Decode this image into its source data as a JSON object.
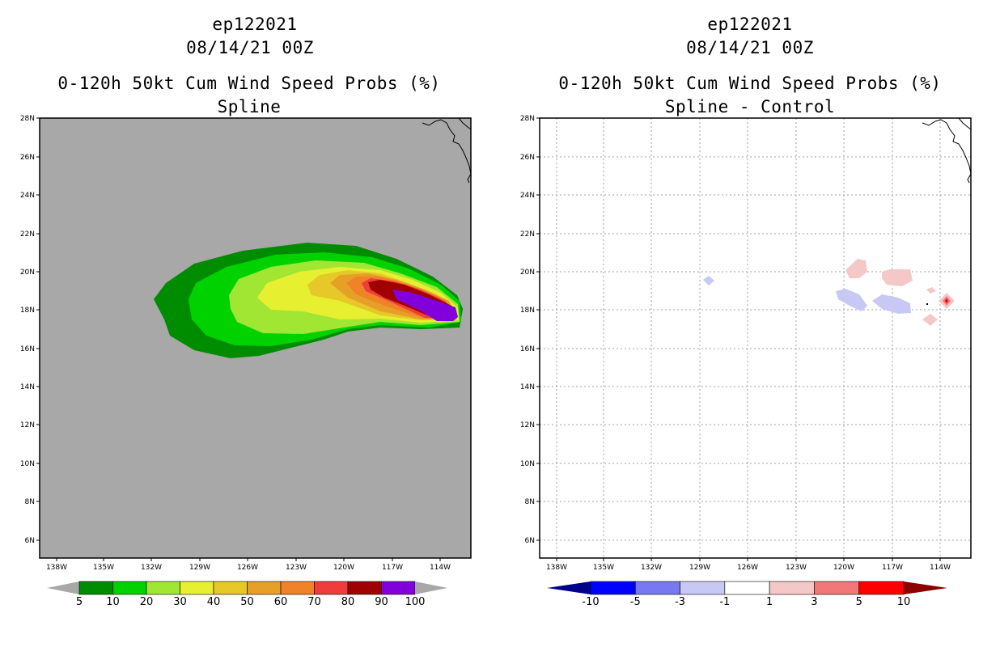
{
  "panels": [
    {
      "storm_id": "ep122021",
      "datetime": "08/14/21 00Z",
      "product": "0-120h 50kt Cum Wind Speed Probs (%)",
      "subtitle": "Spline",
      "colorbar": {
        "labels": [
          "5",
          "10",
          "20",
          "30",
          "40",
          "50",
          "60",
          "70",
          "80",
          "90",
          "100"
        ],
        "colors": [
          "#008c00",
          "#00d200",
          "#a0e632",
          "#e6f030",
          "#e6c828",
          "#e6a028",
          "#f08228",
          "#f03c3c",
          "#a00000",
          "#8200dc"
        ],
        "extend_colors": [
          "#a8a8a8",
          "#a8a8a8"
        ]
      }
    },
    {
      "storm_id": "ep122021",
      "datetime": "08/14/21 00Z",
      "product": "0-120h 50kt Cum Wind Speed Probs (%)",
      "subtitle": "Spline - Control",
      "colorbar": {
        "labels": [
          "-10",
          "-5",
          "-3",
          "-1",
          "1",
          "3",
          "5",
          "10"
        ],
        "colors": [
          "#0000ff",
          "#7878f0",
          "#c8c8f5",
          "#ffffff",
          "#f5c8c8",
          "#f07878",
          "#ff0000"
        ],
        "extend_colors": [
          "#00008c",
          "#8c0000"
        ]
      }
    }
  ],
  "chart_data": {
    "type": "map",
    "lon_ticks": [
      "138W",
      "135W",
      "132W",
      "129W",
      "126W",
      "123W",
      "120W",
      "117W",
      "114W"
    ],
    "lat_ticks": [
      "28N",
      "26N",
      "24N",
      "22N",
      "20N",
      "18N",
      "16N",
      "14N",
      "12N",
      "10N",
      "8N",
      "6N"
    ],
    "lon_range": [
      -139.5,
      -112.5
    ],
    "lat_range": [
      5,
      28
    ],
    "grid": "dotted (right panel only)",
    "background": {
      "left": "#a8a8a8",
      "right": "#ffffff"
    },
    "left_contours_percent": [
      5,
      10,
      20,
      30,
      40,
      50,
      60,
      70,
      80,
      90,
      100
    ],
    "left_max_region": "~90-100% near 18N 114W-117W",
    "right_diff_features": [
      {
        "sign": "negative",
        "value": "-3 to -1",
        "location": "19.5N 129W"
      },
      {
        "sign": "positive",
        "value": "1 to 3",
        "location": "20N 119W"
      },
      {
        "sign": "negative",
        "value": "-3 to -1",
        "location": "18.8N 119.5W"
      },
      {
        "sign": "positive",
        "value": "1 to 3",
        "location": "19.8N 116.5W"
      },
      {
        "sign": "negative",
        "value": "-3 to -1",
        "location": "18.5N 116.5W"
      },
      {
        "sign": "positive",
        "value": "3 to 5",
        "location": "18.5N 113.5W"
      },
      {
        "sign": "positive",
        "value": "1 to 3",
        "location": "17.5N 114.5W"
      }
    ]
  }
}
